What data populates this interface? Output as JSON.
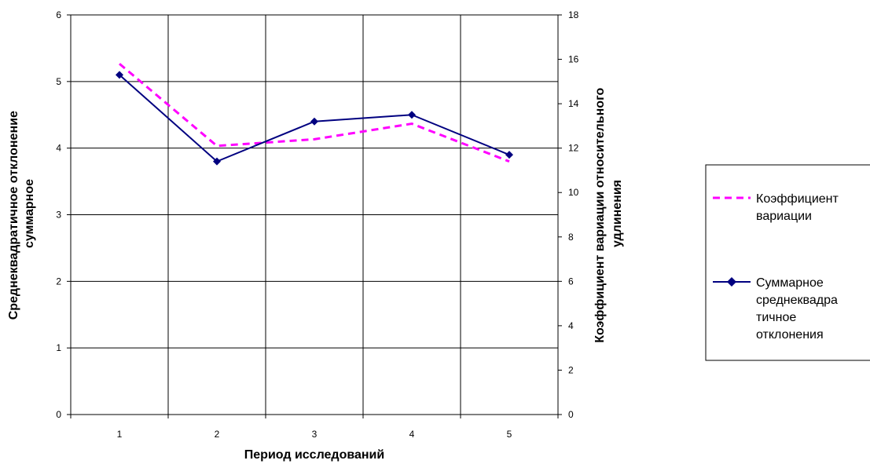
{
  "chart_data": {
    "type": "line",
    "x": [
      1,
      2,
      3,
      4,
      5
    ],
    "categories": [
      "1",
      "2",
      "3",
      "4",
      "5"
    ],
    "xlabel": "Период исследований",
    "ylabel_left": [
      "Среднеквадратичное отклонение",
      "суммарное"
    ],
    "ylabel_right": [
      "Коэффициент вариации относительного",
      "удлинения"
    ],
    "ylim_left": [
      0,
      6
    ],
    "ylim_right": [
      0,
      18
    ],
    "yticks_left": [
      "0",
      "1",
      "2",
      "3",
      "4",
      "5",
      "6"
    ],
    "yticks_right": [
      "0",
      "2",
      "4",
      "6",
      "8",
      "10",
      "12",
      "14",
      "16",
      "18"
    ],
    "grid": true,
    "legend_position": "right",
    "series": [
      {
        "name": [
          "Коэффициент",
          "вариации"
        ],
        "axis": "right",
        "values": [
          15.8,
          12.1,
          12.4,
          13.1,
          11.4
        ],
        "color": "#FF00FF",
        "style": "dashed",
        "marker": "none"
      },
      {
        "name": [
          "Суммарное",
          "среднеквадра",
          "тичное",
          "отклонения"
        ],
        "axis": "left",
        "values": [
          5.1,
          3.8,
          4.4,
          4.5,
          3.9
        ],
        "color": "#000080",
        "style": "solid",
        "marker": "diamond"
      }
    ]
  }
}
